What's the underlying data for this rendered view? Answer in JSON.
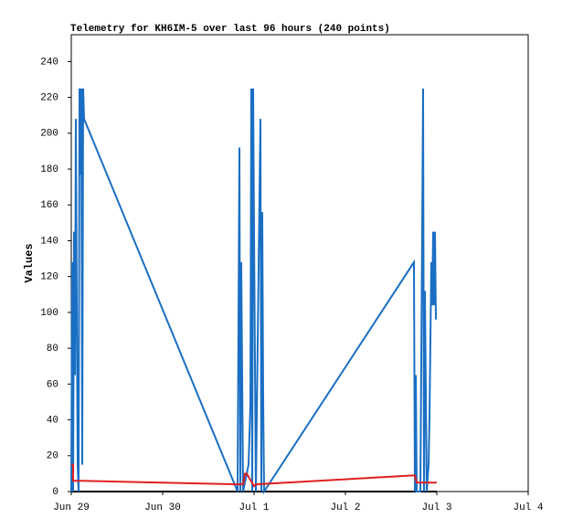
{
  "chart_data": {
    "type": "line",
    "title": "Telemetry for KH6IM-5 over last 96 hours (240 points)",
    "y_label": "Values",
    "xlim": [
      0,
      5
    ],
    "xticks": [
      {
        "value": 0,
        "label": "Jun 29"
      },
      {
        "value": 1,
        "label": "Jun 30"
      },
      {
        "value": 2,
        "label": "Jul 1"
      },
      {
        "value": 3,
        "label": "Jul 2"
      },
      {
        "value": 4,
        "label": "Jul 3"
      },
      {
        "value": 5,
        "label": "Jul 4"
      }
    ],
    "ylim": [
      0,
      255
    ],
    "yticks": [
      0,
      20,
      40,
      60,
      80,
      100,
      120,
      140,
      160,
      180,
      200,
      220,
      240
    ],
    "series": [
      {
        "color": "#000000",
        "x": [
          0,
          4
        ],
        "values": [
          0,
          0
        ]
      },
      {
        "color": "#1a6fc4",
        "x": [
          0,
          0.01,
          0.02,
          0.03,
          0.04,
          0.05,
          0.06,
          0.07,
          0.08,
          0.09,
          0.1,
          0.11,
          0.12,
          0.13,
          0.14,
          1.82,
          1.84,
          1.85,
          1.86,
          1.87,
          1.88,
          1.94,
          1.96,
          1.97,
          1.98,
          1.99,
          2.0,
          2.02,
          2.07,
          2.08,
          2.09,
          2.1,
          2.11,
          3.75,
          3.76,
          3.77,
          3.78,
          3.82,
          3.84,
          3.85,
          3.86,
          3.87,
          3.89,
          3.91,
          3.92,
          3.94,
          3.95,
          3.96,
          3.97,
          3.98,
          3.99
        ],
        "values": [
          0,
          128,
          0,
          145,
          65,
          208,
          104,
          15,
          0,
          225,
          177,
          225,
          15,
          225,
          208,
          0,
          192,
          0,
          128,
          65,
          0,
          15,
          48,
          225,
          0,
          225,
          145,
          0,
          208,
          0,
          156,
          52,
          0,
          128,
          0,
          65,
          0,
          0,
          145,
          225,
          0,
          112,
          0,
          15,
          41,
          128,
          104,
          145,
          104,
          145,
          96
        ]
      },
      {
        "color": "#e02020",
        "x": [
          0,
          0.02,
          0.02,
          0.12,
          1.82,
          1.88,
          1.9,
          1.92,
          2.0,
          2.02,
          3.74,
          3.76,
          3.78,
          4.0
        ],
        "values": [
          15,
          15,
          6,
          6,
          4,
          4,
          10,
          10,
          3,
          4,
          9,
          9,
          5,
          5
        ]
      }
    ]
  }
}
